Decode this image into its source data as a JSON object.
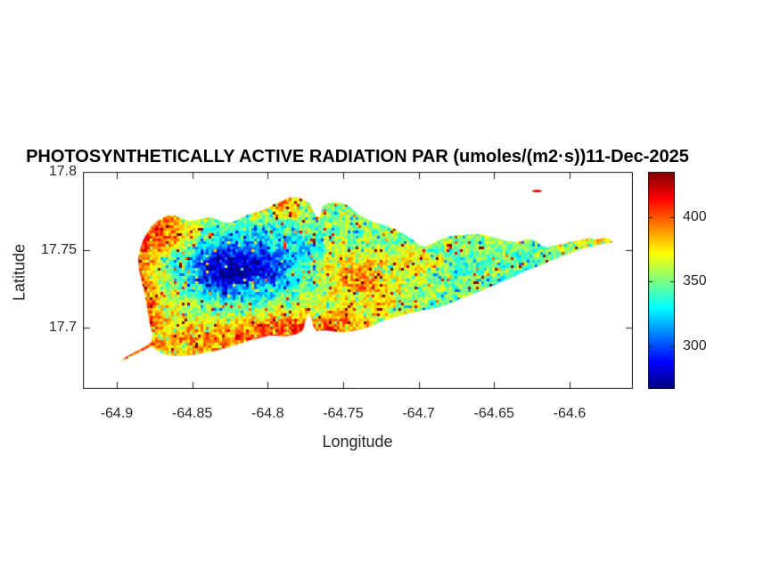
{
  "figure": {
    "title": "PHOTOSYNTHETICALLY ACTIVE RADIATION PAR (umoles/(m2·s))11-Dec-2025"
  },
  "axes": {
    "xlabel": "Longitude",
    "ylabel": "Latitude"
  },
  "chart_data": {
    "type": "heatmap",
    "title": "PHOTOSYNTHETICALLY ACTIVE RADIATION PAR (umoles/(m2·s))11-Dec-2025",
    "xlabel": "Longitude",
    "ylabel": "Latitude",
    "units": "umoles/(m2·s)",
    "date": "11-Dec-2025",
    "colormap": "jet",
    "grid": false,
    "xlim": [
      -64.9224,
      -64.558
    ],
    "ylim": [
      17.6606,
      17.8
    ],
    "xticks": [
      -64.9,
      -64.85,
      -64.8,
      -64.75,
      -64.7,
      -64.65,
      -64.6
    ],
    "xtick_labels": [
      "-64.9",
      "-64.85",
      "-64.8",
      "-64.75",
      "-64.7",
      "-64.65",
      "-64.6"
    ],
    "yticks": [
      17.8,
      17.75,
      17.7
    ],
    "ytick_labels": [
      "17.8",
      "17.75",
      "17.7"
    ],
    "clim": [
      267,
      435
    ],
    "colorbar": {
      "ticks": [
        400,
        350,
        300
      ],
      "labels": [
        "400",
        "350",
        "300"
      ],
      "position": "right"
    },
    "field": {
      "base": 358,
      "blobs": [
        {
          "lon": -64.828,
          "lat": 17.737,
          "amp": -62,
          "slon": 0.02,
          "slat": 0.013
        },
        {
          "lon": -64.795,
          "lat": 17.742,
          "amp": -38,
          "slon": 0.032,
          "slat": 0.016
        },
        {
          "lon": -64.716,
          "lat": 17.732,
          "amp": -14,
          "slon": 0.045,
          "slat": 0.018
        },
        {
          "lon": -64.888,
          "lat": 17.718,
          "amp": 55,
          "slon": 0.011,
          "slat": 0.034
        },
        {
          "lon": -64.868,
          "lat": 17.762,
          "amp": 40,
          "slon": 0.016,
          "slat": 0.01
        },
        {
          "lon": -64.8,
          "lat": 17.691,
          "amp": 38,
          "slon": 0.055,
          "slat": 0.012
        },
        {
          "lon": -64.749,
          "lat": 17.737,
          "amp": 46,
          "slon": 0.019,
          "slat": 0.01
        },
        {
          "lon": -64.727,
          "lat": 17.724,
          "amp": 26,
          "slon": 0.016,
          "slat": 0.009
        },
        {
          "lon": -64.7,
          "lat": 17.742,
          "amp": 30,
          "slon": 0.012,
          "slat": 0.006
        },
        {
          "lon": -64.629,
          "lat": 17.736,
          "amp": -12,
          "slon": 0.028,
          "slat": 0.01
        },
        {
          "lon": -64.586,
          "lat": 17.756,
          "amp": 18,
          "slon": 0.012,
          "slat": 0.005
        },
        {
          "lon": -64.79,
          "lat": 17.779,
          "amp": 26,
          "slon": 0.016,
          "slat": 0.006
        },
        {
          "lon": -64.76,
          "lat": 17.7,
          "amp": 22,
          "slon": 0.028,
          "slat": 0.01
        },
        {
          "lon": -64.6216,
          "lat": 17.7877,
          "amp": 42,
          "slon": 0.004,
          "slat": 0.0015
        }
      ],
      "noise": {
        "cell": 3,
        "amp": 16,
        "cell2": 9,
        "amp2": 12,
        "hot_prob": 0.06,
        "hot_amp": 55,
        "cold_prob": 0.05,
        "cold_amp": 42
      }
    },
    "islet": {
      "lon": -64.6216,
      "lat": 17.7877,
      "rlon": 0.0033,
      "rlat": 0.0009
    },
    "island_outline": [
      [
        -64.8988,
        17.6777
      ],
      [
        -64.8947,
        17.6806
      ],
      [
        -64.8888,
        17.684
      ],
      [
        -64.8817,
        17.6874
      ],
      [
        -64.877,
        17.6909
      ],
      [
        -64.8764,
        17.6954
      ],
      [
        -64.8781,
        17.7023
      ],
      [
        -64.8793,
        17.7091
      ],
      [
        -64.8805,
        17.716
      ],
      [
        -64.8817,
        17.7229
      ],
      [
        -64.8835,
        17.7297
      ],
      [
        -64.8852,
        17.7366
      ],
      [
        -64.8858,
        17.7434
      ],
      [
        -64.8846,
        17.7503
      ],
      [
        -64.8823,
        17.7566
      ],
      [
        -64.8793,
        17.7617
      ],
      [
        -64.8758,
        17.7663
      ],
      [
        -64.8711,
        17.7697
      ],
      [
        -64.8663,
        17.772
      ],
      [
        -64.8616,
        17.772
      ],
      [
        -64.8569,
        17.7703
      ],
      [
        -64.8522,
        17.7686
      ],
      [
        -64.8474,
        17.7691
      ],
      [
        -64.8427,
        17.7703
      ],
      [
        -64.838,
        17.7709
      ],
      [
        -64.8333,
        17.7697
      ],
      [
        -64.8285,
        17.7674
      ],
      [
        -64.8238,
        17.7674
      ],
      [
        -64.8191,
        17.7697
      ],
      [
        -64.8144,
        17.772
      ],
      [
        -64.8096,
        17.7737
      ],
      [
        -64.8049,
        17.7749
      ],
      [
        -64.8002,
        17.7766
      ],
      [
        -64.7955,
        17.7794
      ],
      [
        -64.7907,
        17.7811
      ],
      [
        -64.786,
        17.7834
      ],
      [
        -64.7813,
        17.784
      ],
      [
        -64.7766,
        17.7823
      ],
      [
        -64.7718,
        17.7794
      ],
      [
        -64.7695,
        17.7743
      ],
      [
        -64.7677,
        17.7714
      ],
      [
        -64.7653,
        17.7714
      ],
      [
        -64.7636,
        17.7777
      ],
      [
        -64.76,
        17.78
      ],
      [
        -64.7553,
        17.7806
      ],
      [
        -64.7506,
        17.78
      ],
      [
        -64.7458,
        17.7777
      ],
      [
        -64.7423,
        17.7749
      ],
      [
        -64.7388,
        17.772
      ],
      [
        -64.734,
        17.7697
      ],
      [
        -64.7293,
        17.7674
      ],
      [
        -64.7246,
        17.7663
      ],
      [
        -64.7199,
        17.7651
      ],
      [
        -64.7151,
        17.7629
      ],
      [
        -64.7104,
        17.7606
      ],
      [
        -64.7069,
        17.7583
      ],
      [
        -64.7033,
        17.756
      ],
      [
        -64.6998,
        17.7531
      ],
      [
        -64.6962,
        17.752
      ],
      [
        -64.6927,
        17.7531
      ],
      [
        -64.6891,
        17.7549
      ],
      [
        -64.6856,
        17.7566
      ],
      [
        -64.6821,
        17.7577
      ],
      [
        -64.6785,
        17.7589
      ],
      [
        -64.675,
        17.7594
      ],
      [
        -64.6703,
        17.7594
      ],
      [
        -64.6655,
        17.76
      ],
      [
        -64.6608,
        17.76
      ],
      [
        -64.6561,
        17.7594
      ],
      [
        -64.6514,
        17.7583
      ],
      [
        -64.6466,
        17.7571
      ],
      [
        -64.6431,
        17.756
      ],
      [
        -64.6396,
        17.7554
      ],
      [
        -64.636,
        17.7549
      ],
      [
        -64.6325,
        17.7554
      ],
      [
        -64.629,
        17.7566
      ],
      [
        -64.6254,
        17.7566
      ],
      [
        -64.6219,
        17.7554
      ],
      [
        -64.6183,
        17.7526
      ],
      [
        -64.6148,
        17.7514
      ],
      [
        -64.6113,
        17.7526
      ],
      [
        -64.6077,
        17.7531
      ],
      [
        -64.6042,
        17.7537
      ],
      [
        -64.6006,
        17.7549
      ],
      [
        -64.5971,
        17.7554
      ],
      [
        -64.5936,
        17.756
      ],
      [
        -64.59,
        17.7571
      ],
      [
        -64.5865,
        17.7577
      ],
      [
        -64.5829,
        17.7566
      ],
      [
        -64.5794,
        17.7571
      ],
      [
        -64.5758,
        17.7577
      ],
      [
        -64.5729,
        17.7566
      ],
      [
        -64.5711,
        17.7549
      ],
      [
        -64.5741,
        17.7543
      ],
      [
        -64.5782,
        17.7537
      ],
      [
        -64.5829,
        17.7526
      ],
      [
        -64.5876,
        17.7514
      ],
      [
        -64.5924,
        17.7503
      ],
      [
        -64.5971,
        17.7486
      ],
      [
        -64.6018,
        17.7469
      ],
      [
        -64.6065,
        17.7451
      ],
      [
        -64.6113,
        17.7434
      ],
      [
        -64.616,
        17.7411
      ],
      [
        -64.6207,
        17.7394
      ],
      [
        -64.6254,
        17.7377
      ],
      [
        -64.6302,
        17.736
      ],
      [
        -64.6349,
        17.7337
      ],
      [
        -64.6396,
        17.7314
      ],
      [
        -64.6443,
        17.7297
      ],
      [
        -64.649,
        17.7274
      ],
      [
        -64.6538,
        17.7257
      ],
      [
        -64.6585,
        17.7234
      ],
      [
        -64.6632,
        17.7217
      ],
      [
        -64.6679,
        17.72
      ],
      [
        -64.6727,
        17.7183
      ],
      [
        -64.6774,
        17.716
      ],
      [
        -64.6821,
        17.7143
      ],
      [
        -64.6868,
        17.7131
      ],
      [
        -64.6915,
        17.712
      ],
      [
        -64.6962,
        17.7114
      ],
      [
        -64.701,
        17.7103
      ],
      [
        -64.7057,
        17.7091
      ],
      [
        -64.7104,
        17.708
      ],
      [
        -64.7151,
        17.7069
      ],
      [
        -64.7199,
        17.7057
      ],
      [
        -64.7246,
        17.704
      ],
      [
        -64.7293,
        17.7017
      ],
      [
        -64.734,
        17.7
      ],
      [
        -64.7388,
        17.6989
      ],
      [
        -64.7435,
        17.6977
      ],
      [
        -64.7482,
        17.6971
      ],
      [
        -64.7529,
        17.6971
      ],
      [
        -64.7577,
        17.6977
      ],
      [
        -64.7624,
        17.6983
      ],
      [
        -64.7671,
        17.6977
      ],
      [
        -64.7695,
        17.7
      ],
      [
        -64.7712,
        17.7063
      ],
      [
        -64.773,
        17.7091
      ],
      [
        -64.7748,
        17.7046
      ],
      [
        -64.7766,
        17.6983
      ],
      [
        -64.7801,
        17.696
      ],
      [
        -64.7848,
        17.6949
      ],
      [
        -64.7895,
        17.6943
      ],
      [
        -64.7943,
        17.6949
      ],
      [
        -64.799,
        17.6949
      ],
      [
        -64.8037,
        17.6937
      ],
      [
        -64.8085,
        17.6926
      ],
      [
        -64.8132,
        17.6914
      ],
      [
        -64.8179,
        17.6897
      ],
      [
        -64.8227,
        17.6886
      ],
      [
        -64.8274,
        17.6869
      ],
      [
        -64.8321,
        17.6857
      ],
      [
        -64.8368,
        17.6846
      ],
      [
        -64.8416,
        17.684
      ],
      [
        -64.8463,
        17.6829
      ],
      [
        -64.851,
        17.6823
      ],
      [
        -64.8557,
        17.6817
      ],
      [
        -64.8605,
        17.6817
      ],
      [
        -64.8652,
        17.6823
      ],
      [
        -64.8699,
        17.6834
      ],
      [
        -64.8734,
        17.6857
      ],
      [
        -64.877,
        17.688
      ],
      [
        -64.8817,
        17.6857
      ],
      [
        -64.8876,
        17.6829
      ],
      [
        -64.8935,
        17.68
      ],
      [
        -64.8976,
        17.6783
      ]
    ]
  }
}
